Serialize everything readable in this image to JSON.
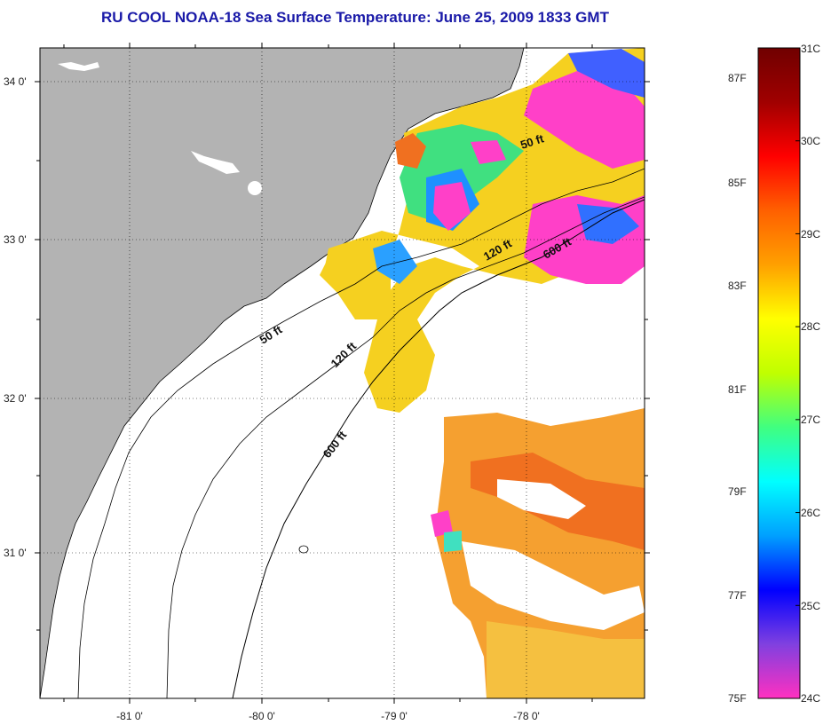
{
  "title": "RU COOL  NOAA-18  Sea Surface Temperature:  June 25, 2009 1833 GMT",
  "lat_labels": [
    "34 0'",
    "33 0'",
    "32 0'",
    "31 0'"
  ],
  "lon_labels": [
    "-81 0'",
    "-80 0'",
    "-79 0'",
    "-78 0'"
  ],
  "depth_labels": [
    "50 ft",
    "120 ft",
    "600 ft",
    "50 ft",
    "120 ft",
    "600 ft"
  ],
  "colorbar": {
    "celsius_labels": [
      "31C",
      "30C",
      "29C",
      "28C",
      "27C",
      "26C",
      "25C",
      "24C"
    ],
    "fahrenheit_labels": [
      "87F",
      "85F",
      "83F",
      "81F",
      "79F",
      "77F",
      "75F"
    ],
    "colors": [
      "#ff30c0",
      "#8040e0",
      "#0000ff",
      "#00a0ff",
      "#00ffff",
      "#40ff80",
      "#c0ff00",
      "#ffff00",
      "#ffa000",
      "#ff6000",
      "#ff0000",
      "#a00000",
      "#700000"
    ]
  },
  "colors": {
    "land": "#b3b3b3",
    "ocean": "#ffffff",
    "title": "#1a1aa8"
  }
}
